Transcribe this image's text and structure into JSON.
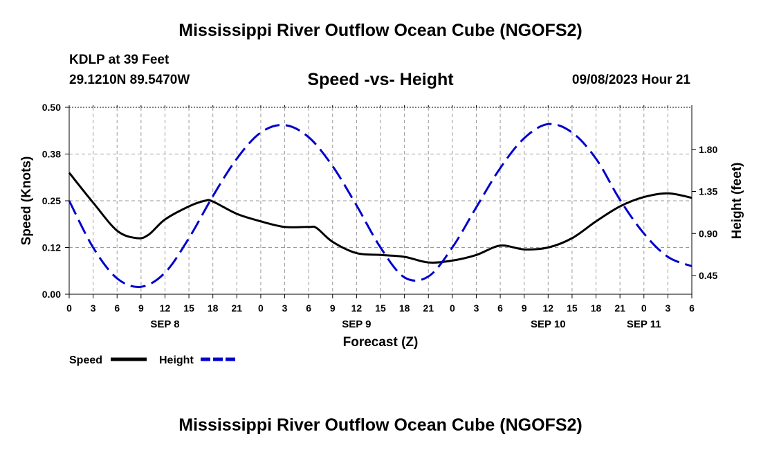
{
  "header": {
    "title": "Mississippi River Outflow Ocean Cube (NGOFS2)",
    "station": "KDLP at 39 Feet",
    "coords": "29.1210N  89.5470W",
    "subtitle": "Speed -vs- Height",
    "timestamp": "09/08/2023 Hour 21"
  },
  "footer": {
    "title": "Mississippi River Outflow Ocean Cube (NGOFS2)"
  },
  "chart_data": {
    "type": "line",
    "xlabel": "Forecast (Z)",
    "ylabel_left": "Speed (Knots)",
    "ylabel_right": "Height (feet)",
    "x_range_hours": [
      0,
      78
    ],
    "x_tick_labels": [
      "0",
      "3",
      "6",
      "9",
      "12",
      "15",
      "18",
      "21",
      "0",
      "3",
      "6",
      "9",
      "12",
      "15",
      "18",
      "21",
      "0",
      "3",
      "6",
      "9",
      "12",
      "15",
      "18",
      "21",
      "0",
      "3",
      "6"
    ],
    "day_labels": [
      {
        "label": "SEP 8",
        "hour": 12
      },
      {
        "label": "SEP 9",
        "hour": 36
      },
      {
        "label": "SEP 10",
        "hour": 60
      },
      {
        "label": "SEP 11",
        "hour": 72
      }
    ],
    "y_left_range": [
      0,
      0.5
    ],
    "y_left_ticks": [
      0,
      0.125,
      0.25,
      0.375,
      0.5
    ],
    "y_left_tick_labels": [
      "0.00",
      "0.12",
      "0.25",
      "0.38",
      "0.50"
    ],
    "y_right_range": [
      0.25,
      2.25
    ],
    "y_right_ticks": [
      0.45,
      0.9,
      1.35,
      1.8
    ],
    "y_right_tick_labels": [
      "0.45",
      "0.90",
      "1.35",
      "1.80"
    ],
    "grid": true,
    "legend_position": "bottom-left",
    "series": [
      {
        "name": "Speed",
        "axis": "left",
        "color": "#000000",
        "style": "solid",
        "x": [
          0,
          3,
          6,
          8.5,
          10,
          12,
          15,
          17,
          18,
          21,
          24,
          27,
          30,
          31,
          33,
          36,
          39,
          42,
          45,
          48,
          51,
          54,
          57,
          60,
          63,
          66,
          69,
          72,
          75,
          78
        ],
        "y": [
          0.325,
          0.245,
          0.17,
          0.15,
          0.16,
          0.2,
          0.235,
          0.25,
          0.248,
          0.215,
          0.195,
          0.18,
          0.18,
          0.177,
          0.14,
          0.11,
          0.105,
          0.1,
          0.085,
          0.09,
          0.105,
          0.13,
          0.12,
          0.125,
          0.15,
          0.195,
          0.235,
          0.26,
          0.27,
          0.258
        ]
      },
      {
        "name": "Height",
        "axis": "right",
        "color": "#0000cc",
        "style": "dashed",
        "x": [
          0,
          3,
          6,
          9,
          12,
          15,
          18,
          21,
          24,
          27,
          30,
          33,
          36,
          39,
          42,
          45,
          48,
          51,
          54,
          57,
          60,
          63,
          66,
          69,
          72,
          75,
          78
        ],
        "y": [
          1.25,
          0.75,
          0.42,
          0.33,
          0.48,
          0.85,
          1.3,
          1.7,
          1.98,
          2.06,
          1.93,
          1.62,
          1.2,
          0.75,
          0.43,
          0.44,
          0.75,
          1.18,
          1.6,
          1.92,
          2.07,
          1.98,
          1.7,
          1.26,
          0.9,
          0.65,
          0.55
        ]
      }
    ],
    "legend": [
      {
        "label": "Speed",
        "color": "#000000",
        "style": "solid"
      },
      {
        "label": "Height",
        "color": "#0000cc",
        "style": "dashed"
      }
    ]
  }
}
